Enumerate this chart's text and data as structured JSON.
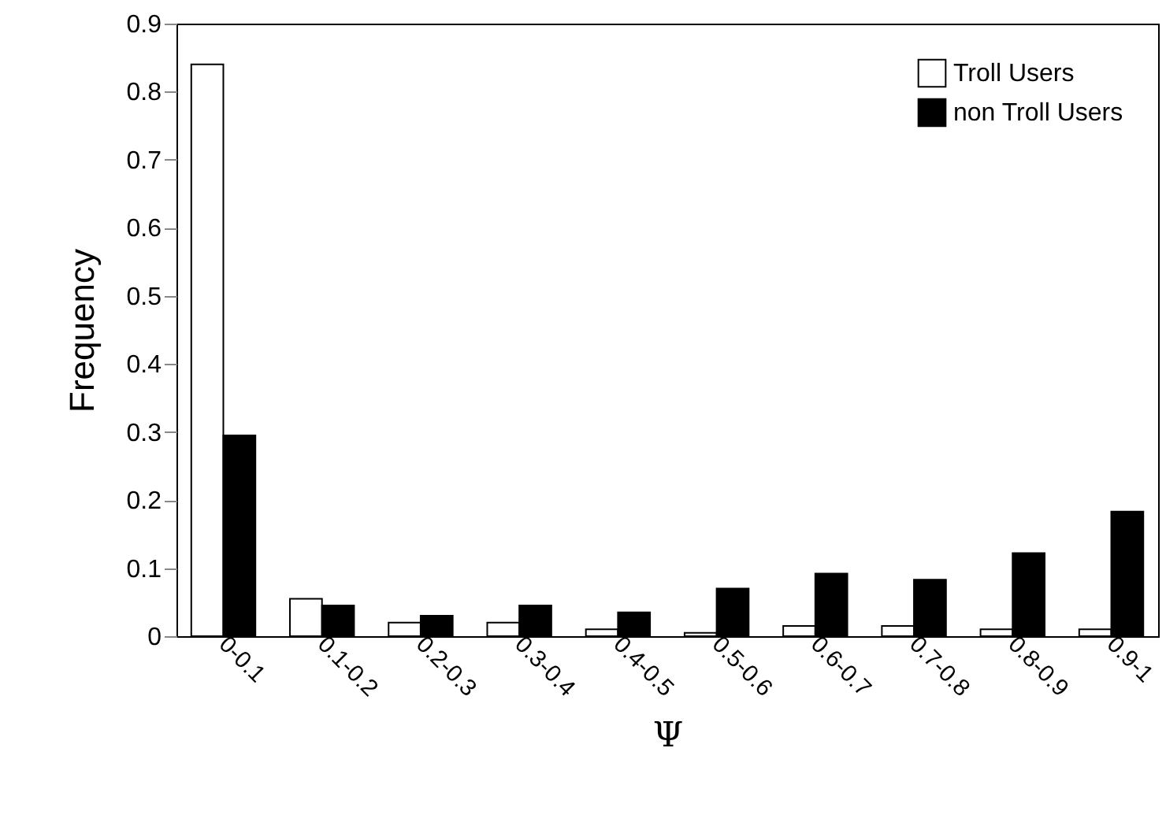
{
  "chart_data": {
    "type": "bar",
    "xlabel": "Ψ",
    "ylabel": "Frequency",
    "categories": [
      "0-0.1",
      "0.1-0.2",
      "0.2-0.3",
      "0.3-0.4",
      "0.4-0.5",
      "0.5-0.6",
      "0.6-0.7",
      "0.7-0.8",
      "0.8-0.9",
      "0.9-1"
    ],
    "series": [
      {
        "name": "Troll Users",
        "color": "#ffffff",
        "values": [
          0.84,
          0.055,
          0.02,
          0.02,
          0.01,
          0.005,
          0.015,
          0.015,
          0.01,
          0.01
        ]
      },
      {
        "name": "non Troll Users",
        "color": "#000000",
        "values": [
          0.295,
          0.045,
          0.03,
          0.045,
          0.035,
          0.07,
          0.092,
          0.083,
          0.122,
          0.183
        ]
      }
    ],
    "ylim": [
      0,
      0.9
    ],
    "yticks": [
      0,
      0.1,
      0.2,
      0.3,
      0.4,
      0.5,
      0.6,
      0.7,
      0.8,
      0.9
    ],
    "grid": false,
    "legend": "top right"
  }
}
